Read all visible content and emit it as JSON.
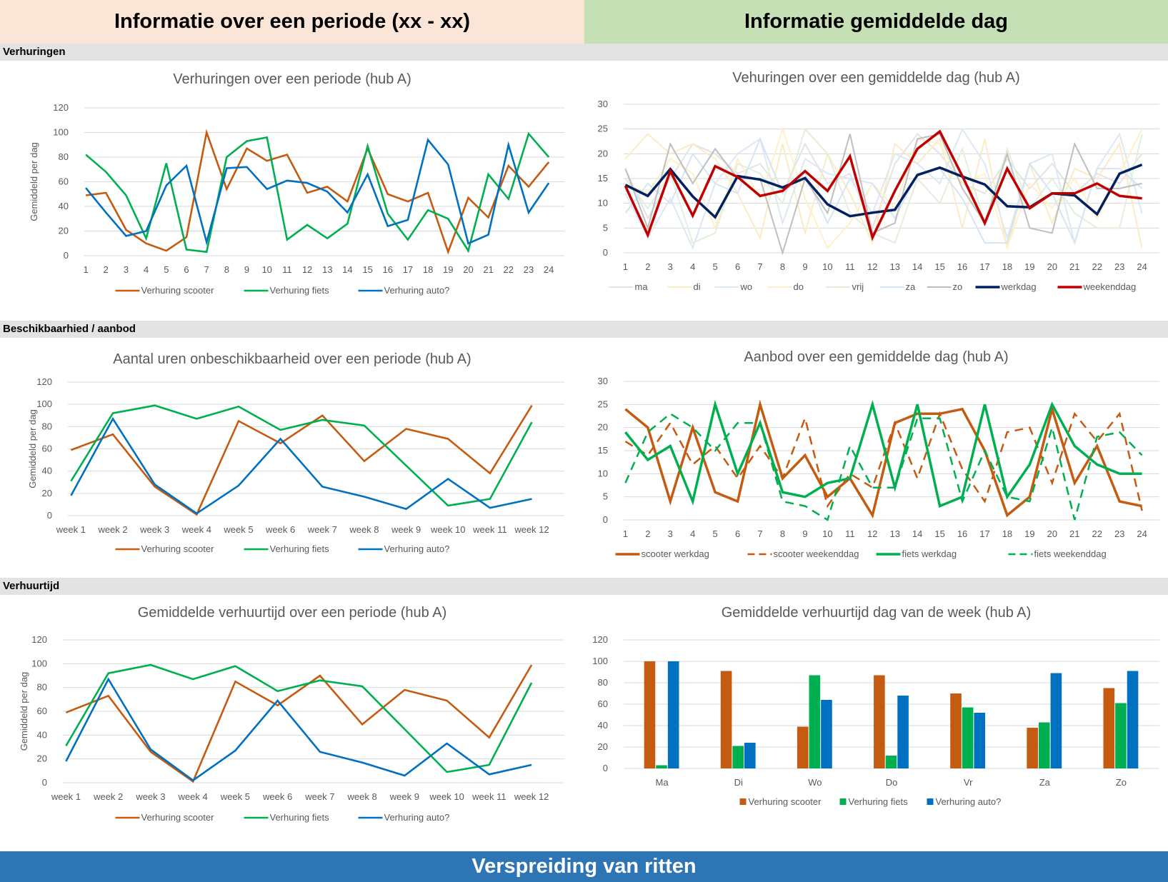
{
  "header": {
    "left_title": "Informatie over een periode (xx - xx)",
    "right_title": "Informatie gemiddelde dag"
  },
  "sections": {
    "rentals": "Verhuringen",
    "availability": "Beschikbaarhied / aanbod",
    "rental_time": "Verhuurtijd"
  },
  "footer": {
    "title": "Verspreiding van ritten"
  },
  "colors": {
    "scooter": "#c55a11",
    "fiets": "#00b050",
    "auto": "#0070c0",
    "werkdag": "#002060",
    "weekenddag": "#c00000",
    "grid": "#d9d9d9"
  },
  "chart_data": [
    {
      "id": "c1",
      "type": "line",
      "title": "Verhuringen over een periode (hub A)",
      "ylabel": "Gemiddeld per dag",
      "xlabel": "",
      "ylim": [
        0,
        120
      ],
      "yticks": [
        0,
        20,
        40,
        60,
        80,
        100,
        120
      ],
      "categories": [
        "1",
        "2",
        "3",
        "4",
        "5",
        "6",
        "7",
        "8",
        "9",
        "10",
        "11",
        "12",
        "13",
        "14",
        "15",
        "16",
        "17",
        "18",
        "19",
        "20",
        "21",
        "22",
        "23",
        "24"
      ],
      "series": [
        {
          "name": "Verhuring scooter",
          "color": "#c55a11",
          "values": [
            49,
            51,
            21,
            10,
            4,
            15,
            100,
            54,
            87,
            77,
            82,
            51,
            56,
            44,
            87,
            50,
            44,
            51,
            3,
            47,
            31,
            73,
            56,
            76
          ]
        },
        {
          "name": "Verhuring fiets",
          "color": "#00b050",
          "values": [
            82,
            68,
            49,
            14,
            75,
            5,
            3,
            80,
            93,
            96,
            13,
            25,
            14,
            26,
            89,
            34,
            13,
            37,
            30,
            4,
            66,
            46,
            99,
            80
          ]
        },
        {
          "name": "Verhuring auto?",
          "color": "#0070c0",
          "values": [
            55,
            35,
            16,
            20,
            57,
            73,
            11,
            71,
            72,
            54,
            61,
            59,
            52,
            35,
            66,
            24,
            29,
            94,
            74,
            10,
            17,
            90,
            35,
            59
          ]
        }
      ]
    },
    {
      "id": "c2",
      "type": "line",
      "title": "Vehuringen over een gemiddelde dag (hub A)",
      "ylabel": "",
      "xlabel": "",
      "ylim": [
        0,
        30
      ],
      "yticks": [
        0,
        5,
        10,
        15,
        20,
        25,
        30
      ],
      "categories": [
        "1",
        "2",
        "3",
        "4",
        "5",
        "6",
        "7",
        "8",
        "9",
        "10",
        "11",
        "12",
        "13",
        "14",
        "15",
        "16",
        "17",
        "18",
        "19",
        "20",
        "21",
        "22",
        "23",
        "24"
      ],
      "series": [
        {
          "name": "ma",
          "color": "#e3e3e3",
          "width": 2,
          "values": [
            17,
            7,
            15,
            22,
            20,
            16,
            18,
            12,
            22,
            14,
            16,
            5,
            18,
            24,
            20,
            14,
            12,
            19,
            13,
            18,
            12,
            16,
            14,
            20
          ]
        },
        {
          "name": "di",
          "color": "#fbecc4",
          "width": 2,
          "values": [
            19,
            24,
            20,
            22,
            19,
            12,
            3,
            22,
            4,
            20,
            12,
            2,
            22,
            18,
            23,
            5,
            23,
            1,
            18,
            6,
            17,
            15,
            22,
            1
          ]
        },
        {
          "name": "wo",
          "color": "#dce8f5",
          "width": 2,
          "values": [
            12,
            3,
            11,
            1,
            14,
            20,
            23,
            6,
            19,
            16,
            15,
            8,
            20,
            18,
            14,
            25,
            18,
            3,
            18,
            20,
            2,
            17,
            24,
            8
          ]
        },
        {
          "name": "do",
          "color": "#fff0c8",
          "width": 2,
          "values": [
            14,
            12,
            19,
            16,
            5,
            19,
            11,
            25,
            11,
            1,
            6,
            14,
            9,
            23,
            22,
            14,
            16,
            1,
            14,
            9,
            15,
            7,
            16,
            25
          ]
        },
        {
          "name": "vrij",
          "color": "#e2efda",
          "width": 2,
          "values": [
            15,
            9,
            16,
            2,
            4,
            18,
            16,
            10,
            25,
            20,
            8,
            4,
            2,
            15,
            10,
            21,
            6,
            21,
            9,
            15,
            8,
            5,
            5,
            24
          ]
        },
        {
          "name": "za",
          "color": "#d6e4f3",
          "width": 2,
          "values": [
            8,
            14,
            10,
            20,
            14,
            12,
            23,
            12,
            16,
            6,
            15,
            14,
            7,
            16,
            17,
            11,
            2,
            2,
            18,
            12,
            2,
            17,
            17,
            13
          ]
        },
        {
          "name": "zo",
          "color": "#bfbfbf",
          "width": 2,
          "values": [
            17,
            5,
            22,
            14,
            21,
            15,
            15,
            0,
            15,
            8,
            24,
            4,
            6,
            23,
            24,
            13,
            6,
            20,
            5,
            4,
            22,
            13,
            13,
            14
          ]
        },
        {
          "name": "werkdag",
          "color": "#002060",
          "width": 3.5,
          "values": [
            13.7,
            11.5,
            16.9,
            11.4,
            7.2,
            15.5,
            14.8,
            13.2,
            15.1,
            9.8,
            7.4,
            8.1,
            8.7,
            15.7,
            17.2,
            15.4,
            13.8,
            9.4,
            9.2,
            12.0,
            11.6,
            7.8,
            16.0,
            17.8
          ]
        },
        {
          "name": "weekenddag",
          "color": "#c00000",
          "width": 3.5,
          "values": [
            13.5,
            3.6,
            16.5,
            7.5,
            17.5,
            15.3,
            11.5,
            12.5,
            16.5,
            12.5,
            19.5,
            3.1,
            12.5,
            21.0,
            24.5,
            15.5,
            6.0,
            17.0,
            9.0,
            12.0,
            12.0,
            14.0,
            11.5,
            11.0
          ]
        }
      ]
    },
    {
      "id": "c3",
      "type": "line",
      "title": "Aantal uren onbeschikbaarheid over een periode (hub A)",
      "ylabel": "Gemiddeld per dag",
      "xlabel": "",
      "ylim": [
        0,
        120
      ],
      "yticks": [
        0,
        20,
        40,
        60,
        80,
        100,
        120
      ],
      "categories": [
        "week 1",
        "week 2",
        "week 3",
        "week 4",
        "week 5",
        "week 6",
        "week 7",
        "week 8",
        "week 9",
        "week 10",
        "week 11",
        "week 12"
      ],
      "series": [
        {
          "name": "Verhuring scooter",
          "color": "#c55a11",
          "values": [
            59,
            73,
            26,
            1,
            85,
            65,
            90,
            49,
            78,
            69,
            38,
            99
          ]
        },
        {
          "name": "Verhuring fiets",
          "color": "#00b050",
          "values": [
            31,
            92,
            99,
            87,
            98,
            77,
            86,
            81,
            45,
            9,
            15,
            84
          ]
        },
        {
          "name": "Verhuring auto?",
          "color": "#0070c0",
          "values": [
            18,
            87,
            28,
            2,
            27,
            69,
            26,
            17,
            6,
            33,
            7,
            15
          ]
        }
      ]
    },
    {
      "id": "c4",
      "type": "line",
      "title": "Aanbod over een gemiddelde dag (hub A)",
      "ylabel": "",
      "xlabel": "",
      "ylim": [
        0,
        30
      ],
      "yticks": [
        0,
        5,
        10,
        15,
        20,
        25,
        30
      ],
      "categories": [
        "1",
        "2",
        "3",
        "4",
        "5",
        "6",
        "7",
        "8",
        "9",
        "10",
        "11",
        "12",
        "13",
        "14",
        "15",
        "16",
        "17",
        "18",
        "19",
        "20",
        "21",
        "22",
        "23",
        "24"
      ],
      "series": [
        {
          "name": "scooter werkdag",
          "color": "#c55a11",
          "width": 3.5,
          "dash": false,
          "values": [
            24,
            20,
            4,
            20,
            6,
            4,
            25,
            9,
            14,
            5,
            9,
            1,
            21,
            23,
            23,
            24,
            15,
            1,
            5,
            24,
            8,
            16,
            4,
            3
          ]
        },
        {
          "name": "scooter weekenddag",
          "color": "#c55a11",
          "width": 2.5,
          "dash": true,
          "values": [
            17,
            14,
            21,
            12,
            16,
            9,
            16,
            9,
            22,
            3,
            10,
            7,
            21,
            9,
            23,
            11,
            4,
            19,
            20,
            8,
            23,
            17,
            23,
            2
          ]
        },
        {
          "name": "fiets werkdag",
          "color": "#00b050",
          "width": 3.5,
          "dash": false,
          "values": [
            19,
            13,
            16,
            4,
            25,
            10,
            21,
            6,
            5,
            8,
            9,
            25,
            7,
            25,
            3,
            5,
            25,
            5,
            12,
            25,
            16,
            12,
            10,
            10
          ]
        },
        {
          "name": "fiets weekenddag",
          "color": "#00b050",
          "width": 2.5,
          "dash": true,
          "values": [
            8,
            19,
            23,
            20,
            15,
            21,
            21,
            4,
            3,
            0,
            16,
            7,
            7,
            22,
            22,
            4,
            15,
            5,
            4,
            20,
            0,
            18,
            19,
            14
          ]
        }
      ]
    },
    {
      "id": "c5",
      "type": "line",
      "title": "Gemiddelde verhuurtijd over een periode (hub A)",
      "ylabel": "Gemiddeld per dag",
      "xlabel": "",
      "ylim": [
        0,
        120
      ],
      "yticks": [
        0,
        20,
        40,
        60,
        80,
        100,
        120
      ],
      "categories": [
        "week 1",
        "week 2",
        "week 3",
        "week 4",
        "week 5",
        "week 6",
        "week 7",
        "week 8",
        "week 9",
        "week 10",
        "week 11",
        "week 12"
      ],
      "series": [
        {
          "name": "Verhuring scooter",
          "color": "#c55a11",
          "values": [
            59,
            73,
            26,
            1,
            85,
            65,
            90,
            49,
            78,
            69,
            38,
            99
          ]
        },
        {
          "name": "Verhuring fiets",
          "color": "#00b050",
          "values": [
            31,
            92,
            99,
            87,
            98,
            77,
            86,
            81,
            45,
            9,
            15,
            84
          ]
        },
        {
          "name": "Verhuring auto?",
          "color": "#0070c0",
          "values": [
            18,
            87,
            28,
            2,
            27,
            69,
            26,
            17,
            6,
            33,
            7,
            15
          ]
        }
      ]
    },
    {
      "id": "c6",
      "type": "bar",
      "title": "Gemiddelde verhuurtijd dag van de week (hub A)",
      "ylabel": "",
      "xlabel": "",
      "ylim": [
        0,
        120
      ],
      "yticks": [
        0,
        20,
        40,
        60,
        80,
        100,
        120
      ],
      "categories": [
        "Ma",
        "Di",
        "Wo",
        "Do",
        "Vr",
        "Za",
        "Zo"
      ],
      "series": [
        {
          "name": "Verhuring scooter",
          "color": "#c55a11",
          "values": [
            100,
            91,
            39,
            87,
            70,
            38,
            75
          ]
        },
        {
          "name": "Verhuring fiets",
          "color": "#00b050",
          "values": [
            3,
            21,
            87,
            12,
            57,
            43,
            61
          ]
        },
        {
          "name": "Verhuring auto?",
          "color": "#0070c0",
          "values": [
            100,
            24,
            64,
            68,
            52,
            89,
            91
          ]
        }
      ]
    }
  ]
}
